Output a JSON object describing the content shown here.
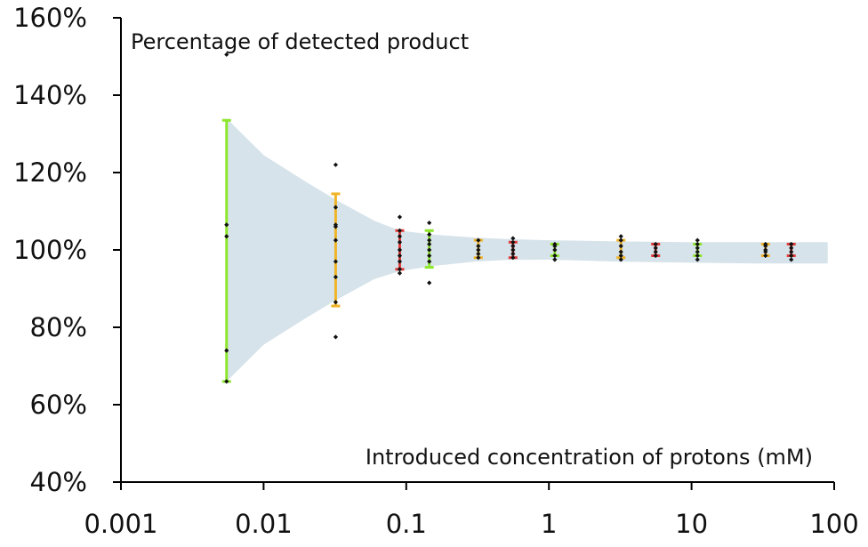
{
  "chart_data": {
    "type": "scatter",
    "title": "",
    "ylabel": "Percentage of detected product",
    "xlabel": "Introduced concentration of protons (mM)",
    "x_scale": "log",
    "xlim": [
      0.001,
      100
    ],
    "ylim": [
      40,
      160
    ],
    "x_ticks": [
      0.001,
      0.01,
      0.1,
      1,
      10,
      100
    ],
    "x_tick_labels": [
      "0.001",
      "0.01",
      "0.1",
      "1",
      "10",
      "100"
    ],
    "y_ticks": [
      40,
      60,
      80,
      100,
      120,
      140,
      160
    ],
    "y_tick_labels": [
      "40%",
      "60%",
      "80%",
      "100%",
      "120%",
      "140%",
      "160%"
    ],
    "grid": false,
    "band": {
      "description": "shaded confidence envelope",
      "color": "#d6e3ea",
      "upper": [
        [
          0.0055,
          134
        ],
        [
          0.01,
          124.5
        ],
        [
          0.02,
          117.5
        ],
        [
          0.032,
          113
        ],
        [
          0.06,
          107.5
        ],
        [
          0.09,
          105
        ],
        [
          0.15,
          104
        ],
        [
          0.3,
          103.2
        ],
        [
          0.5,
          102.8
        ],
        [
          1,
          102.5
        ],
        [
          3,
          102.2
        ],
        [
          10,
          102
        ],
        [
          30,
          102
        ],
        [
          90,
          102
        ]
      ],
      "lower": [
        [
          90,
          96.5
        ],
        [
          30,
          96.5
        ],
        [
          10,
          96.7
        ],
        [
          3,
          97
        ],
        [
          1,
          97.5
        ],
        [
          0.5,
          97.4
        ],
        [
          0.3,
          97
        ],
        [
          0.15,
          95.8
        ],
        [
          0.09,
          94.5
        ],
        [
          0.06,
          92.5
        ],
        [
          0.032,
          87
        ],
        [
          0.02,
          82.5
        ],
        [
          0.01,
          75.5
        ],
        [
          0.0055,
          66
        ]
      ]
    },
    "series": [
      {
        "x": 0.0055,
        "color": "#8ee62d",
        "low": 66,
        "high": 133.5,
        "points": [
          66,
          74,
          103.5,
          106.5,
          150.5
        ]
      },
      {
        "x": 0.032,
        "color": "#f0b429",
        "low": 85.5,
        "high": 114.5,
        "points": [
          77.5,
          86.5,
          93,
          97,
          102.5,
          106,
          106.5,
          111,
          122
        ]
      },
      {
        "x": 0.09,
        "color": "#e23b3b",
        "low": 95,
        "high": 105,
        "points": [
          94,
          95,
          97,
          98.5,
          100,
          102,
          103.5,
          105,
          108.5
        ]
      },
      {
        "x": 0.145,
        "color": "#8ee62d",
        "low": 95.5,
        "high": 105,
        "points": [
          91.5,
          97,
          98.5,
          100,
          101.5,
          102.5,
          104,
          107
        ]
      },
      {
        "x": 0.32,
        "color": "#f0b429",
        "low": 98,
        "high": 102.5,
        "points": [
          98,
          99,
          100,
          101,
          102.5
        ]
      },
      {
        "x": 0.56,
        "color": "#e23b3b",
        "low": 98,
        "high": 102,
        "points": [
          98,
          99,
          100,
          101,
          102,
          103
        ]
      },
      {
        "x": 1.1,
        "color": "#8ee62d",
        "low": 98.5,
        "high": 101.5,
        "points": [
          97.5,
          98.5,
          100,
          101,
          101.5
        ]
      },
      {
        "x": 3.2,
        "color": "#f0b429",
        "low": 98,
        "high": 102.5,
        "points": [
          97.5,
          98.5,
          99.5,
          101,
          102.5,
          103.5
        ]
      },
      {
        "x": 5.6,
        "color": "#e23b3b",
        "low": 98.5,
        "high": 101.5,
        "points": [
          98.5,
          99.5,
          100.5,
          101.5
        ]
      },
      {
        "x": 11,
        "color": "#8ee62d",
        "low": 98.5,
        "high": 101.5,
        "points": [
          97.5,
          98.5,
          99.5,
          100.5,
          101.5,
          102.5
        ]
      },
      {
        "x": 33,
        "color": "#f0b429",
        "low": 98.5,
        "high": 101.5,
        "points": [
          98.5,
          99.5,
          100,
          101,
          101.5
        ]
      },
      {
        "x": 50,
        "color": "#e23b3b",
        "low": 98.5,
        "high": 101.5,
        "points": [
          97.5,
          98.5,
          99.5,
          100.5,
          101.5
        ]
      }
    ]
  }
}
